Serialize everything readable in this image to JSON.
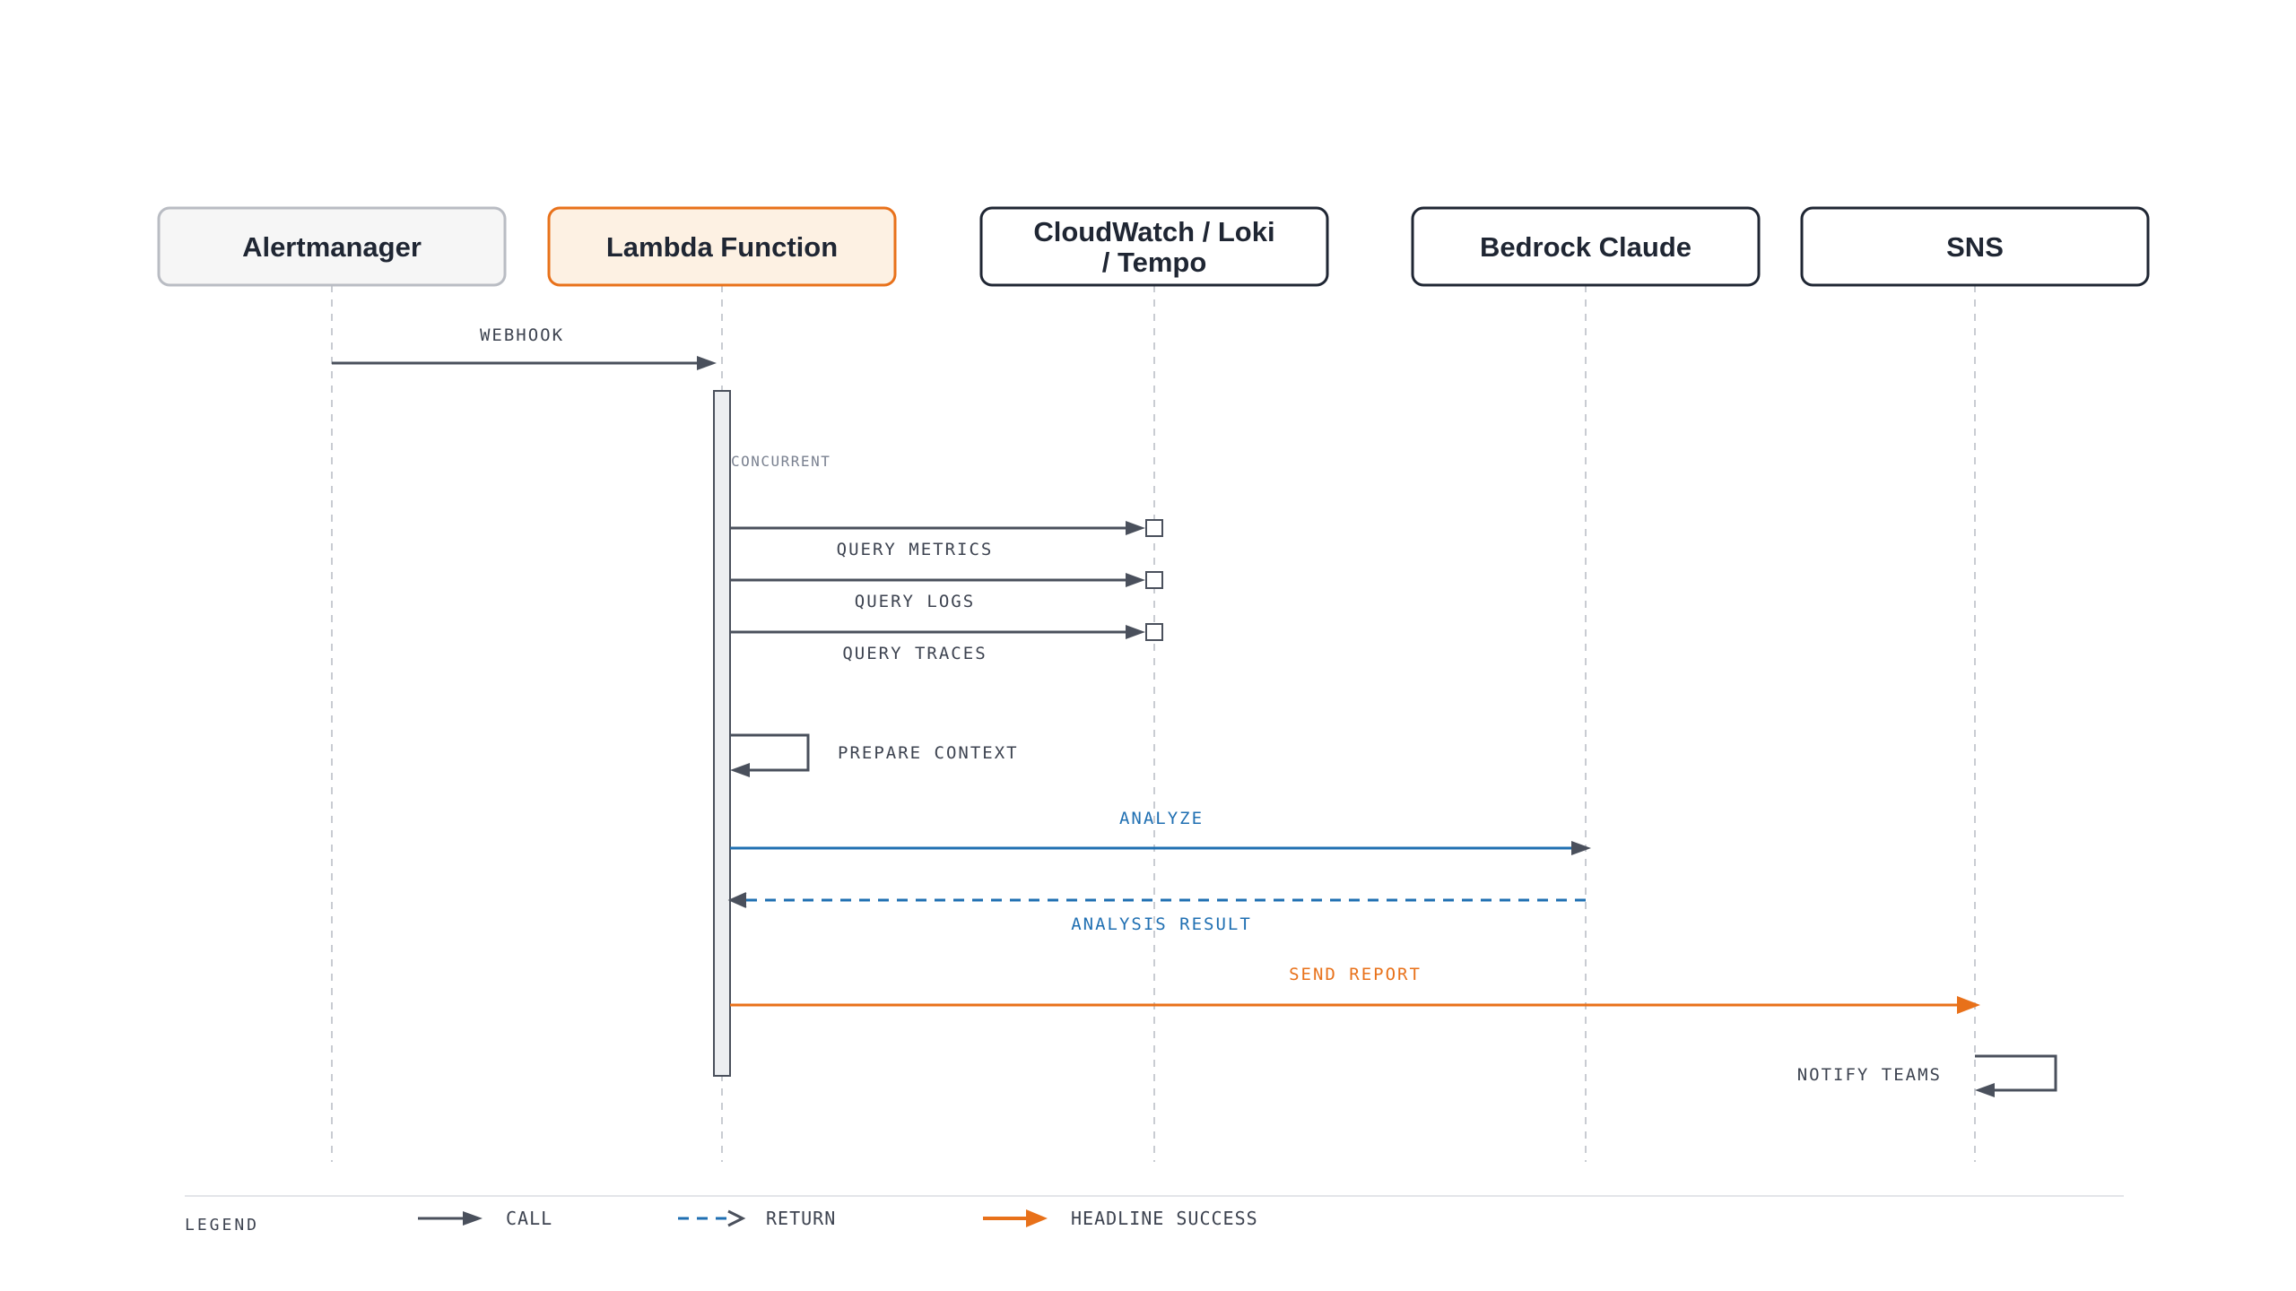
{
  "colors": {
    "ink": "#4a505c",
    "dark_ink": "#1f2633",
    "blue": "#1f6fb2",
    "orange": "#e8711a",
    "lifeline": "#c9ccd2",
    "neutral_fill": "#f6f6f6",
    "highlight_fill": "#fdf1e3"
  },
  "participants": [
    {
      "id": "alertmanager",
      "lines": [
        "Alertmanager"
      ],
      "style": "neutral"
    },
    {
      "id": "lambda",
      "lines": [
        "Lambda Function"
      ],
      "style": "highlight"
    },
    {
      "id": "observability",
      "lines": [
        "CloudWatch / Loki",
        "/ Tempo"
      ],
      "style": "default"
    },
    {
      "id": "bedrock",
      "lines": [
        "Bedrock Claude"
      ],
      "style": "default"
    },
    {
      "id": "sns",
      "lines": [
        "SNS"
      ],
      "style": "default"
    }
  ],
  "notes": {
    "concurrent": "CONCURRENT"
  },
  "messages": [
    {
      "id": "webhook",
      "from": "alertmanager",
      "to": "lambda",
      "label": "WEBHOOK",
      "kind": "call"
    },
    {
      "id": "query-metrics",
      "from": "lambda",
      "to": "observability",
      "label": "QUERY METRICS",
      "kind": "call"
    },
    {
      "id": "query-logs",
      "from": "lambda",
      "to": "observability",
      "label": "QUERY LOGS",
      "kind": "call"
    },
    {
      "id": "query-traces",
      "from": "lambda",
      "to": "observability",
      "label": "QUERY TRACES",
      "kind": "call"
    },
    {
      "id": "prepare-context",
      "from": "lambda",
      "to": "lambda",
      "label": "PREPARE CONTEXT",
      "kind": "self"
    },
    {
      "id": "analyze",
      "from": "lambda",
      "to": "bedrock",
      "label": "ANALYZE",
      "kind": "call-blue"
    },
    {
      "id": "analysis-result",
      "from": "bedrock",
      "to": "lambda",
      "label": "ANALYSIS RESULT",
      "kind": "return"
    },
    {
      "id": "send-report",
      "from": "lambda",
      "to": "sns",
      "label": "SEND REPORT",
      "kind": "success"
    },
    {
      "id": "notify-teams",
      "from": "sns",
      "to": "sns",
      "label": "NOTIFY TEAMS",
      "kind": "self"
    }
  ],
  "legend": {
    "title": "LEGEND",
    "items": [
      {
        "id": "call",
        "label": "CALL",
        "kind": "call"
      },
      {
        "id": "return",
        "label": "RETURN",
        "kind": "return"
      },
      {
        "id": "success",
        "label": "HEADLINE SUCCESS",
        "kind": "success"
      }
    ]
  }
}
